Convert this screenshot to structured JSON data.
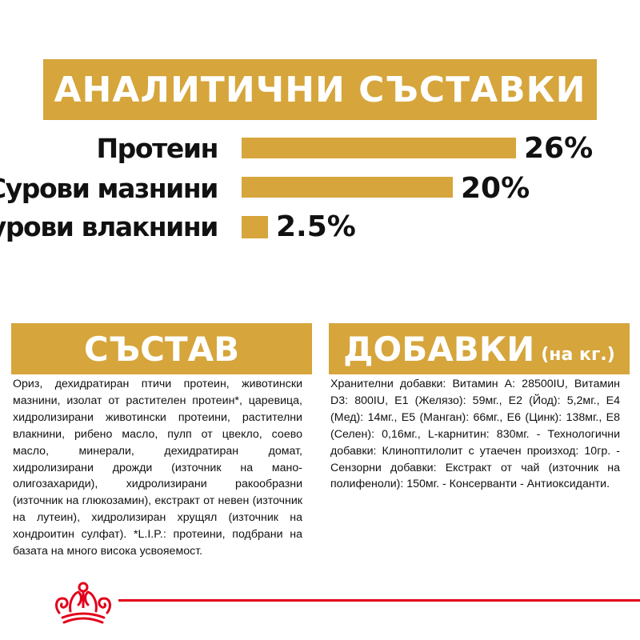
{
  "header": {
    "title": "АНАЛИТИЧНИ СЪСТАВКИ"
  },
  "analytics": {
    "rows": [
      {
        "label": "Протеин",
        "value_label": "26%",
        "percent": 26
      },
      {
        "label": "Сурови мазнини",
        "value_label": "20%",
        "percent": 20
      },
      {
        "label": "Сурови влакнини",
        "value_label": "2.5%",
        "percent": 2.5
      }
    ]
  },
  "composition": {
    "title": "СЪСТАВ",
    "text": "Ориз, дехидратиран птичи протеин, животински мазнини, изолат от растителен протеин*, царевица, хидролизирани животински протеини, растителни влакнини, рибено масло, пулп от цвекло, соево масло, минерали, дехидратиран домат, хидролизирани дрожди (източник на мано- олигозахариди), хидролизирани ракообразни (източник на глюкозамин), екстракт от невен (източник на лутеин), хидролизиран хрущял (източник на хондроитин сулфат). *L.I.P.: протеини, подбрани на базата на много висока усвояемост."
  },
  "additives": {
    "title": "ДОБАВКИ",
    "subtitle": "(на кг.)",
    "text": "Хранителни добавки: Витамин A: 28500IU, Витамин D3: 800IU, E1 (Желязо): 59мг., E2 (Йод): 5,2мг., E4 (Мед): 14мг., E5 (Манган): 66мг., E6 (Цинк): 138мг., E8 (Селен): 0,16мг., L-карнитин: 830мг. - Технологични добавки: Клиноптилолит с утаечен произход: 10гр. - Сензорни добавки: Екстракт от чай (източник на полифеноли): 150мг. - Консерванти - Антиоксиданти."
  },
  "colors": {
    "accent": "#d6a53b",
    "brand_red": "#e2001a",
    "text": "#111111"
  },
  "footer": {
    "logo": "crown-logo-icon"
  }
}
